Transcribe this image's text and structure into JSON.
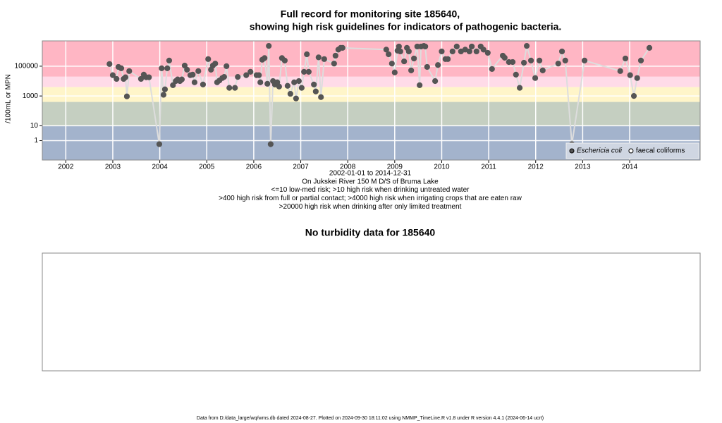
{
  "chart_data": [
    {
      "type": "line",
      "title": "Full record for monitoring site 185640,",
      "subtitle": "showing high risk guidelines for indicators of pathogenic bacteria.",
      "xlabel_lines": [
        "2002-01-01 to 2014-12-31",
        "On Jukskei River 150 M D/S of Bruma Lake",
        "<=10 low-med risk; >10 high risk when drinking untreated water",
        ">400 high risk from full or partial contact; >4000 high risk when irrigating crops that are eaten raw",
        ">20000 high risk when drinking after only limited treatment"
      ],
      "ylabel": "/100mL or MPN",
      "log_y": true,
      "xlim": [
        2001.5,
        2015.5
      ],
      "xticks": [
        2002,
        2003,
        2004,
        2005,
        2006,
        2007,
        2008,
        2009,
        2010,
        2011,
        2012,
        2013,
        2014
      ],
      "ylim": [
        0.05,
        5000000
      ],
      "yticks": [
        1,
        10,
        1000,
        100000
      ],
      "grid": true,
      "grid_color": "#ffffff",
      "band_thresholds": [
        10,
        400,
        4000,
        20000
      ],
      "band_colors": [
        "#a3b3cc",
        "#c5cfc1",
        "#fff5c9",
        "#ffdbe8",
        "#ffb6c4"
      ],
      "line_color": "#dddddd",
      "legend": "bottom-right",
      "series": [
        {
          "name": "Eschericia coli",
          "color": "#555555",
          "marker": "filled",
          "x": [
            2002.93,
            2003.0,
            2003.08,
            2003.12,
            2003.18,
            2003.23,
            2003.27,
            2003.3,
            2003.35,
            2003.6,
            2003.66,
            2003.71,
            2003.77,
            2003.99,
            2004.04,
            2004.08,
            2004.11,
            2004.16,
            2004.2,
            2004.28,
            2004.34,
            2004.38,
            2004.43,
            2004.47,
            2004.53,
            2004.58,
            2004.65,
            2004.7,
            2004.74,
            2004.82,
            2004.92,
            2005.03,
            2005.09,
            2005.13,
            2005.18,
            2005.22,
            2005.27,
            2005.33,
            2005.37,
            2005.42,
            2005.48,
            2005.6,
            2005.66,
            2005.84,
            2005.93,
            2006.06,
            2006.11,
            2006.14,
            2006.18,
            2006.23,
            2006.29,
            2006.32,
            2006.36,
            2006.41,
            2006.45,
            2006.5,
            2006.54,
            2006.6,
            2006.66,
            2006.72,
            2006.78,
            2006.86,
            2006.9,
            2006.96,
            2007.02,
            2007.07,
            2007.13,
            2007.17,
            2007.28,
            2007.32,
            2007.38,
            2007.43,
            2007.5,
            2007.71,
            2007.74,
            2007.8,
            2007.85,
            2007.89,
            2008.82,
            2008.87,
            2008.94,
            2009.0,
            2009.06,
            2009.09,
            2009.12,
            2009.2,
            2009.26,
            2009.3,
            2009.35,
            2009.41,
            2009.48,
            2009.53,
            2009.56,
            2009.62,
            2009.65,
            2009.69,
            2009.86,
            2009.92,
            2010.0,
            2010.08,
            2010.13,
            2010.23,
            2010.32,
            2010.41,
            2010.5,
            2010.59,
            2010.64,
            2010.74,
            2010.83,
            2010.89,
            2010.98,
            2011.07,
            2011.3,
            2011.34,
            2011.43,
            2011.51,
            2011.58,
            2011.66,
            2011.75,
            2011.81,
            2011.9,
            2011.99,
            2012.08,
            2012.15,
            2012.48,
            2012.56,
            2012.63,
            2012.77,
            2013.04,
            2013.8,
            2013.91,
            2014.01,
            2014.09,
            2014.16,
            2014.24,
            2014.42
          ],
          "values": [
            140000,
            25000,
            14000,
            89000,
            72000,
            14000,
            18000,
            940,
            47000,
            14000,
            27000,
            18000,
            18000,
            0.58,
            72000,
            1200,
            2800,
            72000,
            240000,
            5300,
            10000,
            13000,
            10000,
            13000,
            110000,
            58000,
            25000,
            27000,
            8300,
            47000,
            5900,
            300000,
            58000,
            110000,
            150000,
            8300,
            11000,
            16000,
            19000,
            100000,
            3500,
            3500,
            19000,
            25000,
            42000,
            25000,
            25000,
            8300,
            270000,
            350000,
            6600,
            2300000,
            0.58,
            10000,
            5900,
            8300,
            4300,
            350000,
            240000,
            4800,
            1400,
            8300,
            680,
            10000,
            3500,
            42000,
            630000,
            42000,
            5900,
            2000,
            390000,
            840,
            300000,
            150000,
            510000,
            1300000,
            1700000,
            1700000,
            1300000,
            630000,
            150000,
            38000,
            1100000,
            2100000,
            980000,
            210000,
            1700000,
            980000,
            52000,
            330000,
            2100000,
            5300,
            2100000,
            2300000,
            2100000,
            89000,
            10000,
            120000,
            980000,
            300000,
            300000,
            980000,
            2100000,
            980000,
            1300000,
            980000,
            2100000,
            980000,
            2100000,
            1300000,
            790000,
            65000,
            510000,
            370000,
            190000,
            190000,
            27000,
            3500,
            170000,
            2300000,
            240000,
            16000,
            240000,
            52000,
            150000,
            980000,
            240000,
            0.58,
            240000,
            47000,
            330000,
            25000,
            1000,
            16000,
            240000,
            1700000
          ]
        },
        {
          "name": "faecal coliforms",
          "color": "#555555",
          "marker": "open",
          "x": [],
          "values": []
        }
      ]
    },
    {
      "type": "none",
      "title": "No turbidity data for 185640"
    }
  ],
  "footer": "Data from D:/data_large/wq/wms.db dated 2024-08-27. Plotted on 2024-09-30 18:11:02 using NMMP_TimeLine.R v1.8 under R version 4.4.1 (2024-06-14 ucrt)"
}
